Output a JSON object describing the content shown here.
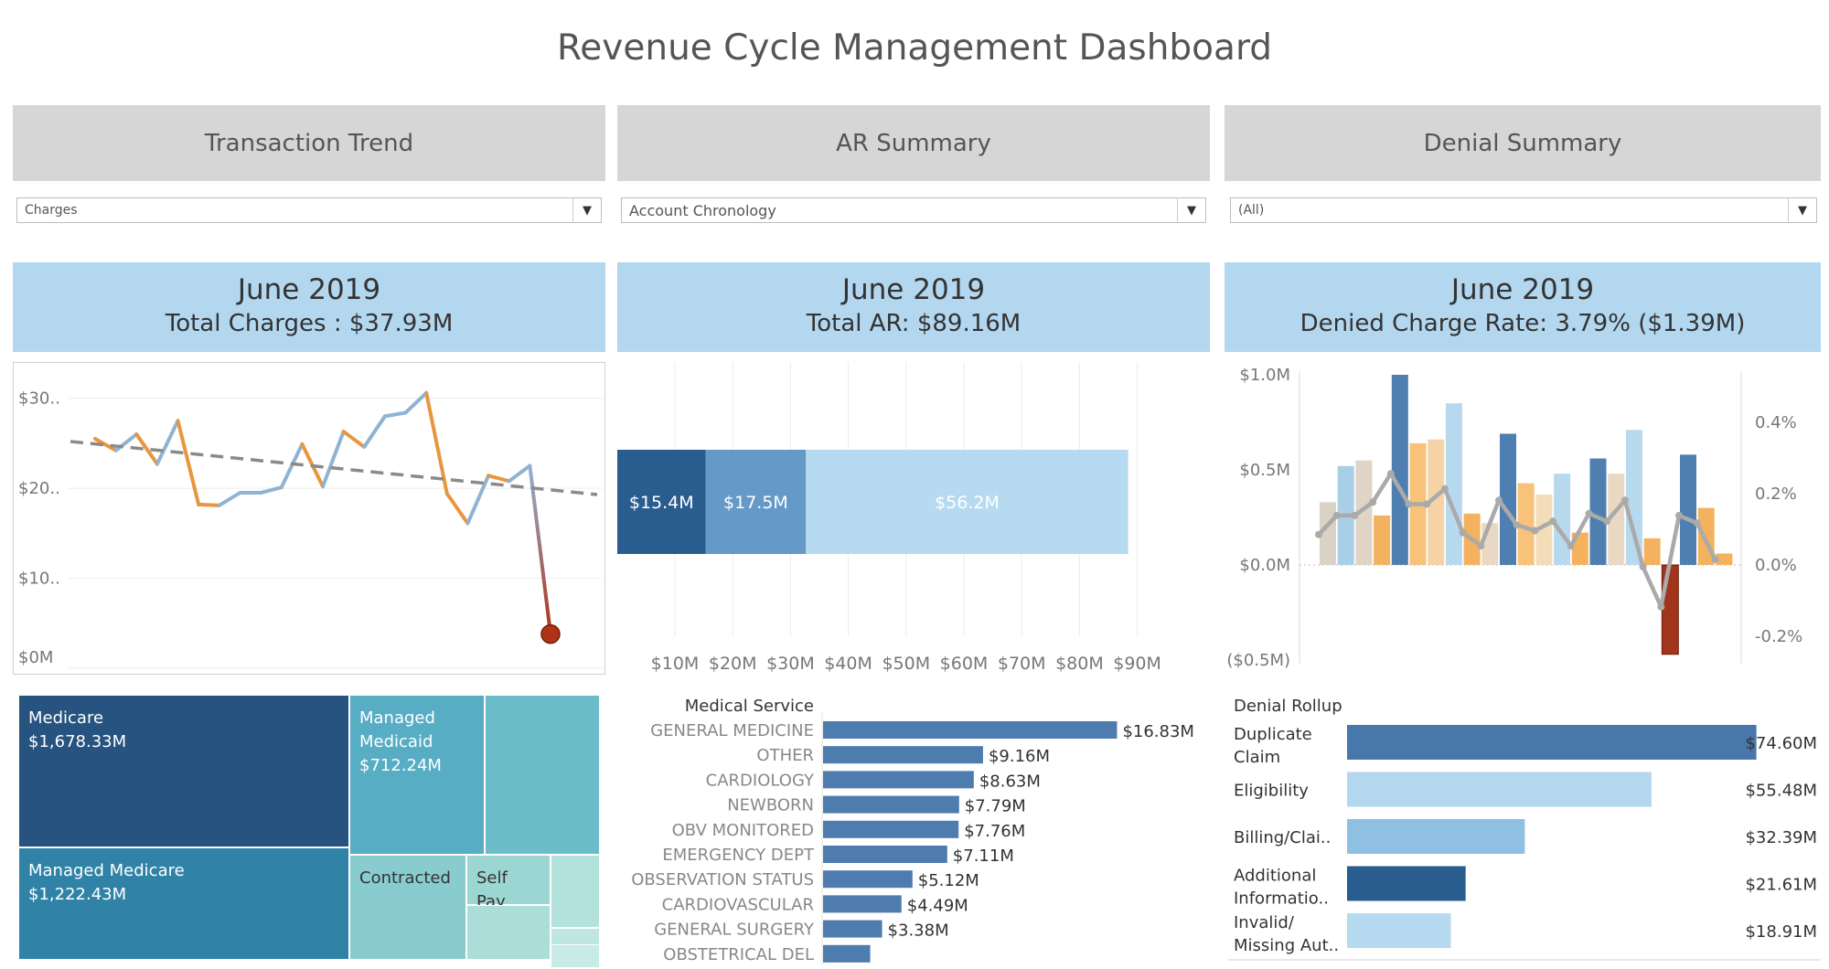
{
  "title": "Revenue Cycle Management Dashboard",
  "sections": {
    "transaction": {
      "header": "Transaction Trend",
      "filter": "Charges",
      "kpi_month": "June 2019",
      "kpi_value": "Total Charges : $37.93M"
    },
    "ar": {
      "header": "AR Summary",
      "filter": "Account Chronology",
      "kpi_month": "June 2019",
      "kpi_value": "Total AR: $89.16M"
    },
    "denial": {
      "header": "Denial Summary",
      "filter": "(All)",
      "kpi_month": "June 2019",
      "kpi_value": "Denied Charge Rate: 3.79% ($1.39M)"
    }
  },
  "icons": {
    "dropdown": "chevron-down-icon",
    "glyph": "▼"
  },
  "chart_data": [
    {
      "type": "line",
      "name": "transaction-trend",
      "y_ticks": [
        "$30..",
        "$20..",
        "$10..",
        "$0M"
      ],
      "ylim": [
        0,
        32
      ],
      "values": [
        25.5,
        24.2,
        26.0,
        22.7,
        27.5,
        18.2,
        18.1,
        19.5,
        19.5,
        20.1,
        24.9,
        20.2,
        26.3,
        24.6,
        28.0,
        28.4,
        30.6,
        19.4,
        16.1,
        21.4,
        20.8,
        22.5,
        3.8
      ],
      "trend_start": 25.2,
      "trend_end": 19.3,
      "colors": {
        "up": "#8fb3d3",
        "down": "#e8963f",
        "last_point": "#b03318",
        "trend": "#8a8a8a"
      }
    },
    {
      "type": "bar",
      "name": "ar-summary",
      "orientation": "horizontal-stacked",
      "segments": [
        {
          "label": "$15.4M",
          "value": 15.4,
          "color": "#2a5d8f"
        },
        {
          "label": "$17.5M",
          "value": 17.5,
          "color": "#6499c8"
        },
        {
          "label": "$56.2M",
          "value": 56.2,
          "color": "#b6daf0"
        }
      ],
      "x_ticks": [
        "$10M",
        "$20M",
        "$30M",
        "$40M",
        "$50M",
        "$60M",
        "$70M",
        "$80M",
        "$90M"
      ],
      "xlim": [
        0,
        100
      ]
    },
    {
      "type": "bar",
      "name": "denial-combo",
      "left_ticks": [
        "$1.0M",
        "$0.5M",
        "$0.0M",
        "($0.5M)"
      ],
      "right_ticks": [
        "0.4%",
        "0.2%",
        "0.0%",
        "-0.2%"
      ],
      "ylim": [
        -0.5,
        1.0
      ],
      "y2lim": [
        -0.2,
        0.4
      ],
      "bars": [
        {
          "value": 0.33,
          "color": "#d9d2c5"
        },
        {
          "value": 0.52,
          "color": "#a8cfe6"
        },
        {
          "value": 0.55,
          "color": "#dfd4c6"
        },
        {
          "value": 0.26,
          "color": "#f4b15e"
        },
        {
          "value": 1.0,
          "color": "#4f7fb0"
        },
        {
          "value": 0.64,
          "color": "#f8c27a"
        },
        {
          "value": 0.66,
          "color": "#f5d3a6"
        },
        {
          "value": 0.85,
          "color": "#b7d9ed"
        },
        {
          "value": 0.27,
          "color": "#f4b15e"
        },
        {
          "value": 0.22,
          "color": "#e9d8c3"
        },
        {
          "value": 0.69,
          "color": "#4f7fb0"
        },
        {
          "value": 0.43,
          "color": "#f8c27a"
        },
        {
          "value": 0.37,
          "color": "#f3ddb9"
        },
        {
          "value": 0.48,
          "color": "#b7d9ed"
        },
        {
          "value": 0.17,
          "color": "#f4b15e"
        },
        {
          "value": 0.56,
          "color": "#4f7fb0"
        },
        {
          "value": 0.48,
          "color": "#e9d8c3"
        },
        {
          "value": 0.71,
          "color": "#b7d9ed"
        },
        {
          "value": 0.14,
          "color": "#f4b15e"
        },
        {
          "value": -0.47,
          "color": "#a0351b"
        },
        {
          "value": 0.58,
          "color": "#4f7fb0"
        },
        {
          "value": 0.3,
          "color": "#f4b15e"
        },
        {
          "value": 0.06,
          "color": "#f4b15e"
        }
      ],
      "line": [
        0.16,
        0.26,
        0.26,
        0.33,
        0.48,
        0.32,
        0.32,
        0.4,
        0.17,
        0.1,
        0.34,
        0.21,
        0.18,
        0.23,
        0.1,
        0.27,
        0.23,
        0.34,
        -0.01,
        -0.22,
        0.26,
        0.22,
        0.03
      ],
      "line_color": "#aaaaaa"
    },
    {
      "type": "bar",
      "name": "medical-service",
      "title": "Medical Service",
      "color": "#4f7cae",
      "categories": [
        "GENERAL MEDICINE",
        "OTHER",
        "CARDIOLOGY",
        "NEWBORN",
        "OBV MONITORED",
        "EMERGENCY DEPT",
        "OBSERVATION STATUS",
        "CARDIOVASCULAR",
        "GENERAL SURGERY",
        "OBSTETRICAL DEL"
      ],
      "values": [
        16.83,
        9.16,
        8.63,
        7.79,
        7.76,
        7.11,
        5.12,
        4.49,
        3.38,
        2.7
      ],
      "labels": [
        "$16.83M",
        "$9.16M",
        "$8.63M",
        "$7.79M",
        "$7.76M",
        "$7.11M",
        "$5.12M",
        "$4.49M",
        "$3.38M",
        ""
      ]
    },
    {
      "type": "bar",
      "name": "denial-rollup",
      "title": "Denial Rollup",
      "categories": [
        [
          "Duplicate",
          "Claim"
        ],
        [
          "Eligibility"
        ],
        [
          "Billing/Clai.."
        ],
        [
          "Additional",
          "Informatio.."
        ],
        [
          "Invalid/",
          "Missing Aut.."
        ]
      ],
      "values": [
        74.6,
        55.48,
        32.39,
        21.61,
        18.91
      ],
      "labels": [
        "$74.60M",
        "$55.48M",
        "$32.39M",
        "$21.61M",
        "$18.91M"
      ],
      "colors": [
        "#4878ab",
        "#b3d7ef",
        "#8fbfe2",
        "#2a5d8f",
        "#b6daf0"
      ]
    }
  ],
  "treemap": [
    {
      "name": "Medicare",
      "value": "$1,678.33M",
      "color": "#26537f"
    },
    {
      "name": "Managed Medicare",
      "value": "$1,222.43M",
      "color": "#3083a6"
    },
    {
      "name": "Managed Medicaid",
      "value": "$712.24M",
      "color": "#57adc4"
    },
    {
      "name": "",
      "value": "",
      "color": "#6cbdca"
    },
    {
      "name": "Contracted",
      "value": "",
      "color": "#89ccd0"
    },
    {
      "name": "Self Pay",
      "value": "",
      "color": "#9bd6d3"
    },
    {
      "name": "",
      "value": "",
      "color": "#b3e1dc"
    },
    {
      "name": "",
      "value": "",
      "color": "#abded9"
    },
    {
      "name": "",
      "value": "",
      "color": "#bfe7e2"
    },
    {
      "name": "",
      "value": "",
      "color": "#c7ebe6"
    }
  ]
}
